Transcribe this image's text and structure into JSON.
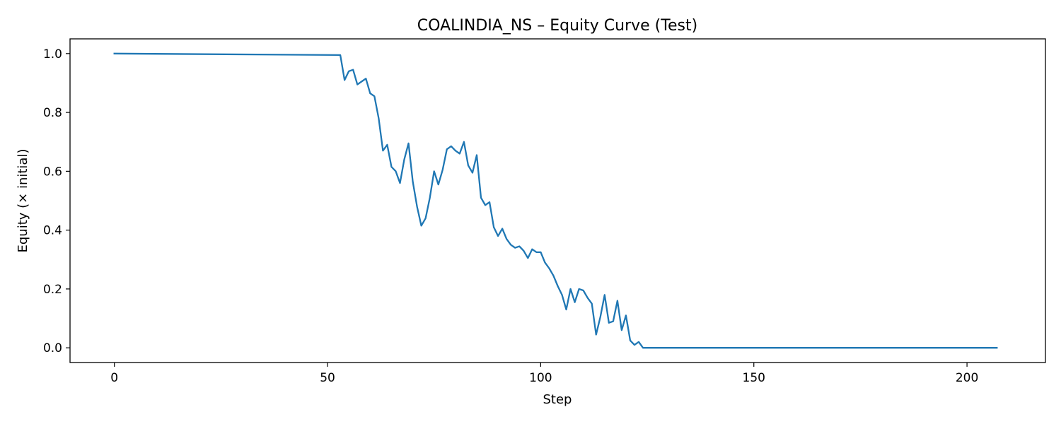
{
  "chart_data": {
    "type": "line",
    "title": "COALINDIA_NS – Equity Curve (Test)",
    "xlabel": "Step",
    "ylabel": "Equity (× initial)",
    "xlim": [
      -10.4,
      218.4
    ],
    "ylim": [
      -0.05,
      1.05
    ],
    "x_ticks": [
      0,
      50,
      100,
      150,
      200
    ],
    "y_ticks": [
      0.0,
      0.2,
      0.4,
      0.6,
      0.8,
      1.0
    ],
    "x_tick_labels": [
      "0",
      "50",
      "100",
      "150",
      "200"
    ],
    "y_tick_labels": [
      "0.0",
      "0.2",
      "0.4",
      "0.6",
      "0.8",
      "1.0"
    ],
    "grid": false,
    "legend": "none",
    "series": [
      {
        "color": "#1f77b4",
        "x": [
          0,
          53,
          54,
          55,
          56,
          57,
          58,
          59,
          60,
          61,
          62,
          63,
          64,
          65,
          66,
          67,
          68,
          69,
          70,
          71,
          72,
          73,
          74,
          75,
          76,
          77,
          78,
          79,
          80,
          81,
          82,
          83,
          84,
          85,
          86,
          87,
          88,
          89,
          90,
          91,
          92,
          93,
          94,
          95,
          96,
          97,
          98,
          99,
          100,
          101,
          102,
          103,
          104,
          105,
          106,
          107,
          108,
          109,
          110,
          111,
          112,
          113,
          114,
          115,
          116,
          117,
          118,
          119,
          120,
          121,
          122,
          123,
          124,
          150,
          160,
          180,
          207
        ],
        "y": [
          1.0,
          0.995,
          0.91,
          0.94,
          0.945,
          0.895,
          0.905,
          0.915,
          0.865,
          0.855,
          0.78,
          0.67,
          0.69,
          0.615,
          0.6,
          0.56,
          0.64,
          0.695,
          0.565,
          0.48,
          0.415,
          0.44,
          0.51,
          0.6,
          0.555,
          0.605,
          0.675,
          0.685,
          0.67,
          0.66,
          0.7,
          0.62,
          0.595,
          0.655,
          0.51,
          0.485,
          0.495,
          0.41,
          0.38,
          0.405,
          0.37,
          0.35,
          0.34,
          0.345,
          0.33,
          0.305,
          0.335,
          0.325,
          0.325,
          0.29,
          0.27,
          0.245,
          0.21,
          0.18,
          0.13,
          0.2,
          0.155,
          0.2,
          0.195,
          0.17,
          0.15,
          0.045,
          0.105,
          0.18,
          0.085,
          0.09,
          0.16,
          0.06,
          0.11,
          0.025,
          0.01,
          0.02,
          0.0,
          0.0,
          0.0,
          0.0,
          0.0
        ]
      }
    ]
  }
}
